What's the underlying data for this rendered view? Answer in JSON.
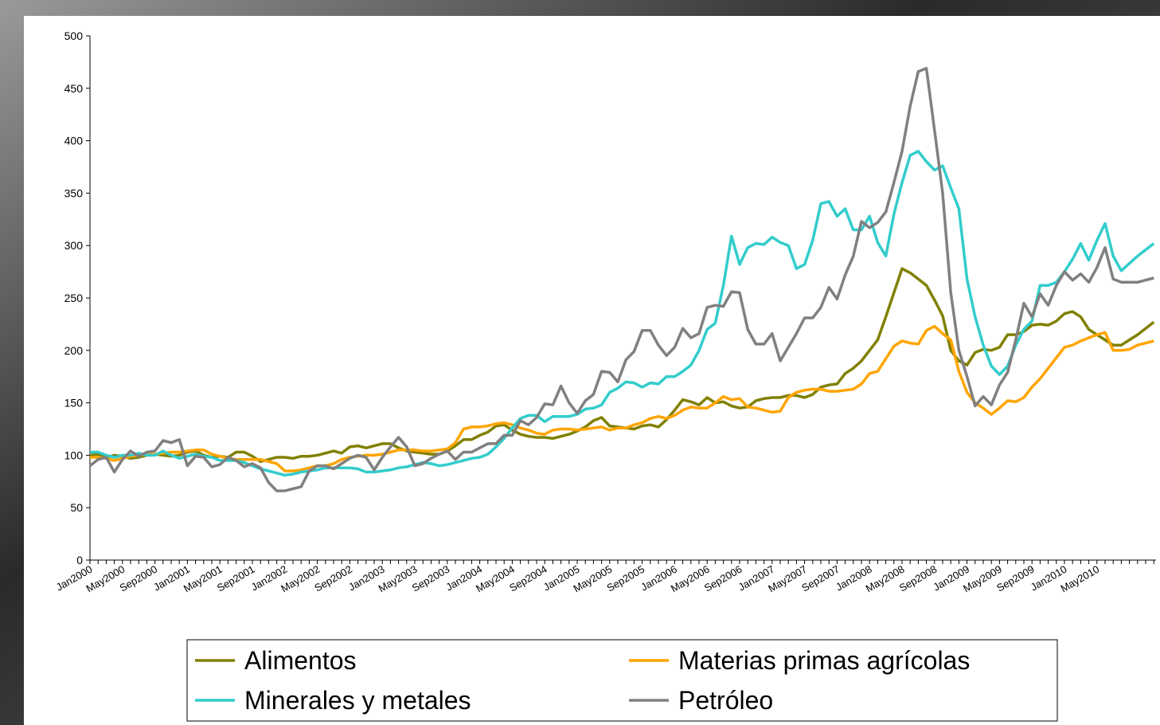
{
  "chart_data": {
    "type": "line",
    "categories": [
      "Jan2000",
      null,
      null,
      null,
      "May2000",
      null,
      null,
      null,
      "Sep2000",
      null,
      null,
      null,
      "Jan2001",
      null,
      null,
      null,
      "May2001",
      null,
      null,
      null,
      "Sep2001",
      null,
      null,
      null,
      "Jan2002",
      null,
      null,
      null,
      "May2002",
      null,
      null,
      null,
      "Sep2002",
      null,
      null,
      null,
      "Jan2003",
      null,
      null,
      null,
      "May2003",
      null,
      null,
      null,
      "Sep2003",
      null,
      null,
      null,
      "Jan2004",
      null,
      null,
      null,
      "May2004",
      null,
      null,
      null,
      "Sep2004",
      null,
      null,
      null,
      "Jan2005",
      null,
      null,
      null,
      "May2005",
      null,
      null,
      null,
      "Sep2005",
      null,
      null,
      null,
      "Jan2006",
      null,
      null,
      null,
      "May2006",
      null,
      null,
      null,
      "Sep2006",
      null,
      null,
      null,
      "Jan2007",
      null,
      null,
      null,
      "May2007",
      null,
      null,
      null,
      "Sep2007",
      null,
      null,
      null,
      "Jan2008",
      null,
      null,
      null,
      "May2008",
      null,
      null,
      null,
      "Sep2008",
      null,
      null,
      null,
      "Jan2009",
      null,
      null,
      null,
      "May2009",
      null,
      null,
      null,
      "Sep2009",
      null,
      null,
      null,
      "Jan2010",
      null,
      null,
      null,
      "May2010",
      null,
      null,
      null,
      null,
      null,
      null,
      null
    ],
    "series": [
      {
        "name": "Alimentos",
        "color": "#808000",
        "values": [
          100,
          101,
          98,
          100,
          99,
          97,
          98,
          100,
          101,
          100,
          99,
          100,
          103,
          104,
          100,
          98,
          99,
          98,
          103,
          103,
          99,
          94,
          96,
          98,
          98,
          97,
          99,
          99,
          100,
          102,
          104,
          102,
          108,
          109,
          107,
          109,
          111,
          111,
          107,
          104,
          103,
          102,
          101,
          101,
          104,
          109,
          115,
          115,
          119,
          122,
          128,
          129,
          124,
          120,
          118,
          117,
          117,
          116,
          118,
          120,
          123,
          127,
          133,
          136,
          128,
          127,
          126,
          125,
          128,
          129,
          127,
          134,
          143,
          153,
          151,
          148,
          155,
          150,
          151,
          147,
          145,
          146,
          152,
          154,
          155,
          155,
          157,
          157,
          155,
          158,
          165,
          167,
          168,
          178,
          183,
          190,
          200,
          210,
          232,
          255,
          278,
          274,
          268,
          262,
          248,
          233,
          200,
          190,
          186,
          198,
          201,
          200,
          203,
          215,
          215,
          218,
          224,
          225,
          224,
          228,
          235,
          237,
          232,
          220,
          215,
          210,
          205,
          205,
          210,
          215,
          221,
          227
        ]
      },
      {
        "name": "Materias primas agrícolas",
        "color": "#ffa500",
        "values": [
          98,
          98,
          97,
          95,
          97,
          99,
          100,
          101,
          101,
          102,
          103,
          103,
          104,
          105,
          105,
          101,
          99,
          97,
          96,
          96,
          96,
          96,
          94,
          92,
          85,
          85,
          86,
          88,
          90,
          90,
          92,
          96,
          98,
          99,
          100,
          100,
          101,
          103,
          105,
          105,
          105,
          104,
          104,
          105,
          106,
          112,
          125,
          127,
          127,
          128,
          130,
          131,
          129,
          126,
          124,
          121,
          120,
          124,
          125,
          125,
          124,
          125,
          126,
          127,
          124,
          126,
          126,
          129,
          131,
          135,
          137,
          135,
          138,
          143,
          146,
          145,
          145,
          150,
          156,
          153,
          154,
          146,
          145,
          143,
          141,
          142,
          155,
          160,
          162,
          163,
          163,
          161,
          161,
          162,
          163,
          168,
          178,
          180,
          192,
          204,
          209,
          207,
          206,
          219,
          223,
          216,
          210,
          180,
          160,
          150,
          145,
          139,
          145,
          152,
          151,
          155,
          165,
          173,
          183,
          193,
          203,
          205,
          209,
          212,
          215,
          217,
          200,
          200,
          201,
          205,
          207,
          209
        ]
      },
      {
        "name": "Minerales y metales",
        "color": "#33cccc",
        "values": [
          103,
          103,
          100,
          98,
          100,
          100,
          102,
          100,
          100,
          104,
          100,
          97,
          99,
          101,
          99,
          98,
          95,
          95,
          95,
          93,
          90,
          87,
          85,
          83,
          81,
          82,
          84,
          85,
          86,
          88,
          88,
          88,
          88,
          87,
          84,
          84,
          85,
          86,
          88,
          89,
          91,
          93,
          92,
          90,
          91,
          93,
          95,
          97,
          98,
          101,
          108,
          116,
          126,
          135,
          138,
          138,
          132,
          137,
          137,
          137,
          139,
          144,
          145,
          148,
          160,
          164,
          170,
          169,
          165,
          169,
          168,
          175,
          175,
          180,
          186,
          200,
          220,
          226,
          262,
          309,
          282,
          298,
          302,
          301,
          308,
          303,
          300,
          278,
          282,
          305,
          340,
          342,
          328,
          335,
          315,
          315,
          328,
          303,
          290,
          330,
          360,
          386,
          390,
          380,
          372,
          376,
          355,
          335,
          268,
          232,
          205,
          185,
          177,
          185,
          205,
          220,
          228,
          262,
          262,
          265,
          275,
          287,
          302,
          286,
          305,
          321,
          290,
          276,
          283,
          290,
          296,
          302
        ]
      },
      {
        "name": "Petróleo",
        "color": "#808080",
        "values": [
          90,
          96,
          98,
          84,
          96,
          104,
          99,
          103,
          104,
          114,
          112,
          115,
          90,
          99,
          98,
          89,
          91,
          98,
          95,
          89,
          92,
          88,
          74,
          66,
          66,
          68,
          70,
          85,
          90,
          90,
          87,
          92,
          97,
          100,
          98,
          86,
          98,
          108,
          117,
          108,
          90,
          92,
          97,
          101,
          104,
          96,
          103,
          103,
          107,
          111,
          111,
          119,
          119,
          133,
          129,
          136,
          149,
          148,
          166,
          150,
          140,
          152,
          158,
          180,
          179,
          170,
          191,
          199,
          219,
          219,
          205,
          195,
          203,
          221,
          212,
          216,
          241,
          243,
          242,
          256,
          255,
          220,
          206,
          206,
          216,
          190,
          203,
          216,
          231,
          231,
          241,
          260,
          249,
          272,
          290,
          323,
          317,
          322,
          332,
          360,
          390,
          433,
          466,
          469,
          410,
          350,
          255,
          200,
          175,
          147,
          156,
          148,
          167,
          179,
          210,
          245,
          232,
          254,
          243,
          262,
          275,
          267,
          273,
          265,
          279,
          298,
          268,
          265,
          265,
          265,
          267,
          269
        ]
      }
    ],
    "ylim": [
      0,
      500
    ],
    "yticks": [
      0,
      50,
      100,
      150,
      200,
      250,
      300,
      350,
      400,
      450,
      500
    ],
    "grid": false,
    "legend": "bottom"
  }
}
